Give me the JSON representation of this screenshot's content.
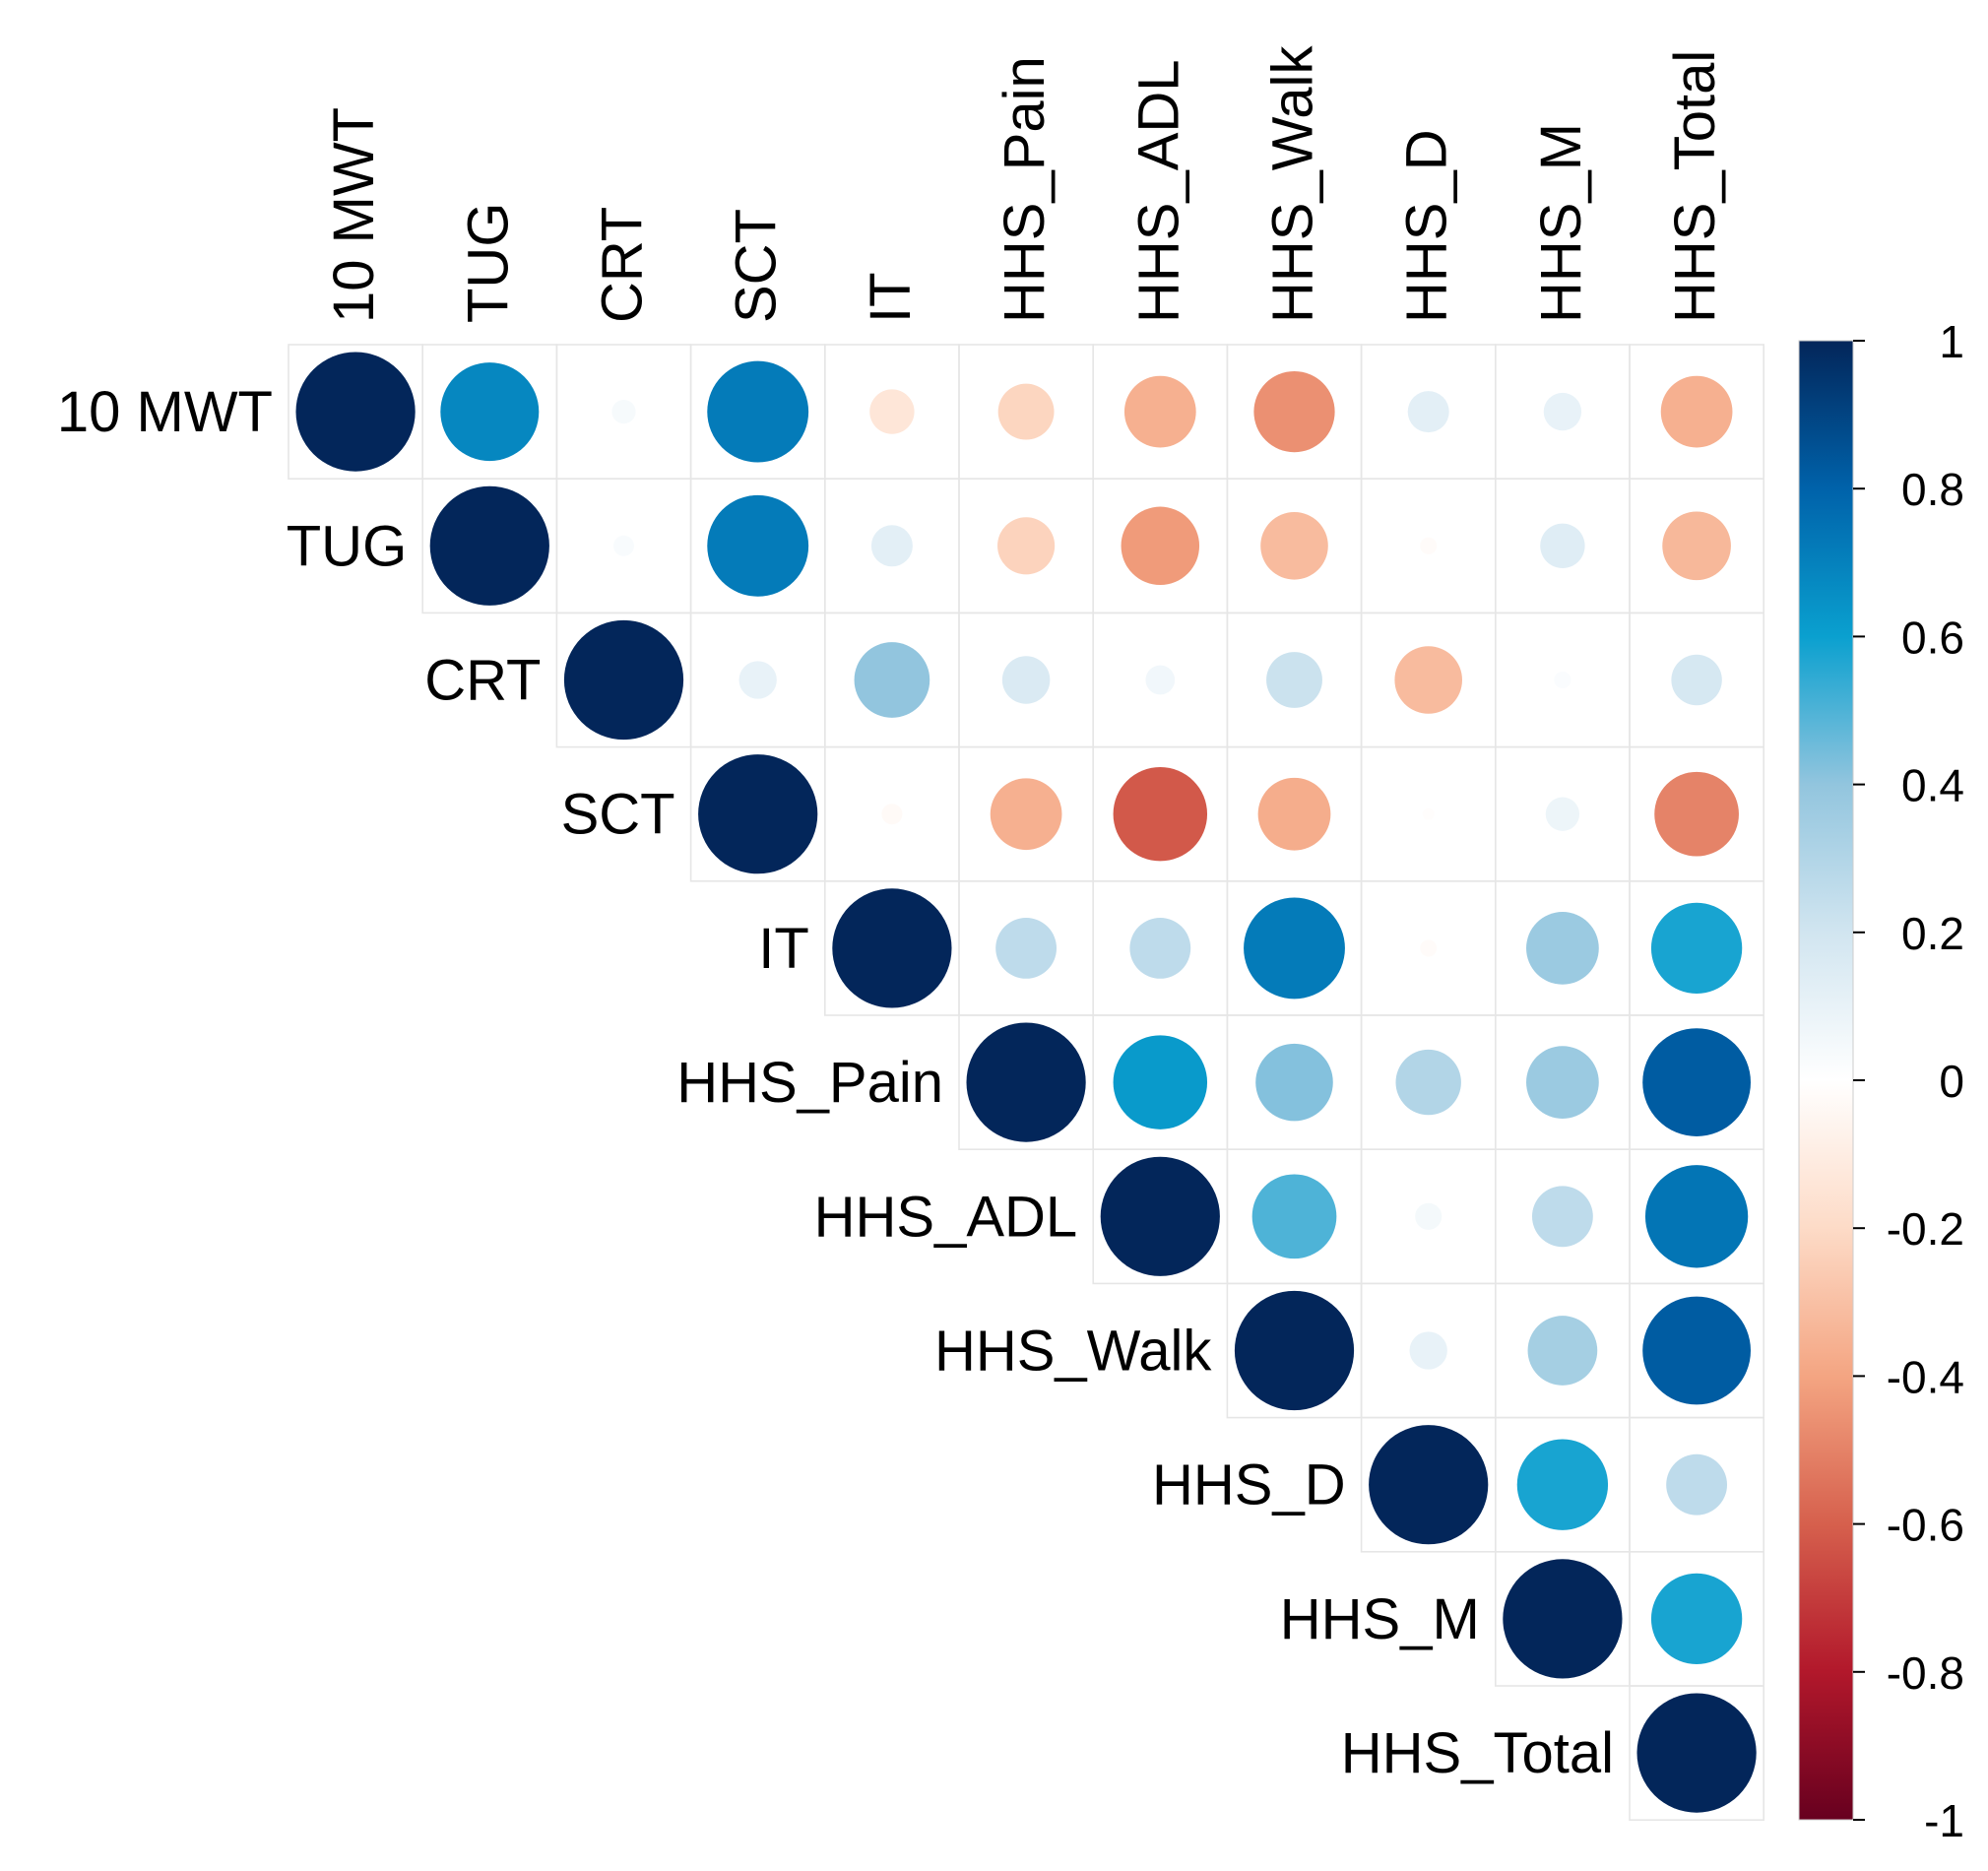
{
  "chart_data": {
    "type": "heatmap",
    "style": "corrplot-circle-upper",
    "variables": [
      "10 MWT",
      "TUG",
      "CRT",
      "SCT",
      "IT",
      "HHS_Pain",
      "HHS_ADL",
      "HHS_Walk",
      "HHS_D",
      "HHS_M",
      "HHS_Total"
    ],
    "matrix": [
      [
        1.0,
        0.68,
        0.04,
        0.72,
        -0.14,
        -0.22,
        -0.36,
        -0.46,
        0.12,
        0.1,
        -0.36
      ],
      [
        null,
        1.0,
        0.03,
        0.72,
        0.12,
        -0.23,
        -0.43,
        -0.32,
        -0.02,
        0.14,
        -0.33
      ],
      [
        null,
        null,
        1.0,
        0.1,
        0.4,
        0.16,
        0.06,
        0.22,
        -0.32,
        0.02,
        0.18
      ],
      [
        null,
        null,
        null,
        1.0,
        -0.03,
        -0.36,
        -0.62,
        -0.37,
        -0.01,
        0.08,
        -0.5
      ],
      [
        null,
        null,
        null,
        null,
        1.0,
        0.26,
        0.26,
        0.72,
        -0.02,
        0.37,
        0.58
      ],
      [
        null,
        null,
        null,
        null,
        null,
        1.0,
        0.62,
        0.42,
        0.3,
        0.37,
        0.82
      ],
      [
        null,
        null,
        null,
        null,
        null,
        null,
        1.0,
        0.5,
        0.05,
        0.26,
        0.74
      ],
      [
        null,
        null,
        null,
        null,
        null,
        null,
        null,
        1.0,
        0.1,
        0.34,
        0.82
      ],
      [
        null,
        null,
        null,
        null,
        null,
        null,
        null,
        null,
        1.0,
        0.58,
        0.26
      ],
      [
        null,
        null,
        null,
        null,
        null,
        null,
        null,
        null,
        null,
        1.0,
        0.58
      ],
      [
        null,
        null,
        null,
        null,
        null,
        null,
        null,
        null,
        null,
        null,
        1.0
      ]
    ],
    "colorbar": {
      "range": [
        -1,
        1
      ],
      "ticks": [
        "1",
        "0.8",
        "0.6",
        "0.4",
        "0.2",
        "0",
        "-0.2",
        "-0.4",
        "-0.6",
        "-0.8",
        "-1"
      ],
      "tick_values": [
        1,
        0.8,
        0.6,
        0.4,
        0.2,
        0,
        -0.2,
        -0.4,
        -0.6,
        -0.8,
        -1
      ],
      "stops": [
        {
          "value": -1.0,
          "color": "#67001F"
        },
        {
          "value": -0.8,
          "color": "#B2182B"
        },
        {
          "value": -0.6,
          "color": "#D6604D"
        },
        {
          "value": -0.4,
          "color": "#F4A582"
        },
        {
          "value": -0.2,
          "color": "#FDDBC7"
        },
        {
          "value": 0.0,
          "color": "#FFFFFF"
        },
        {
          "value": 0.2,
          "color": "#D1E5F0"
        },
        {
          "value": 0.4,
          "color": "#92C5DE"
        },
        {
          "value": 0.6,
          "color": "#0AA0CF"
        },
        {
          "value": 0.8,
          "color": "#0062AA"
        },
        {
          "value": 1.0,
          "color": "#03265A"
        }
      ]
    },
    "grid": true,
    "legend_position": "right"
  }
}
